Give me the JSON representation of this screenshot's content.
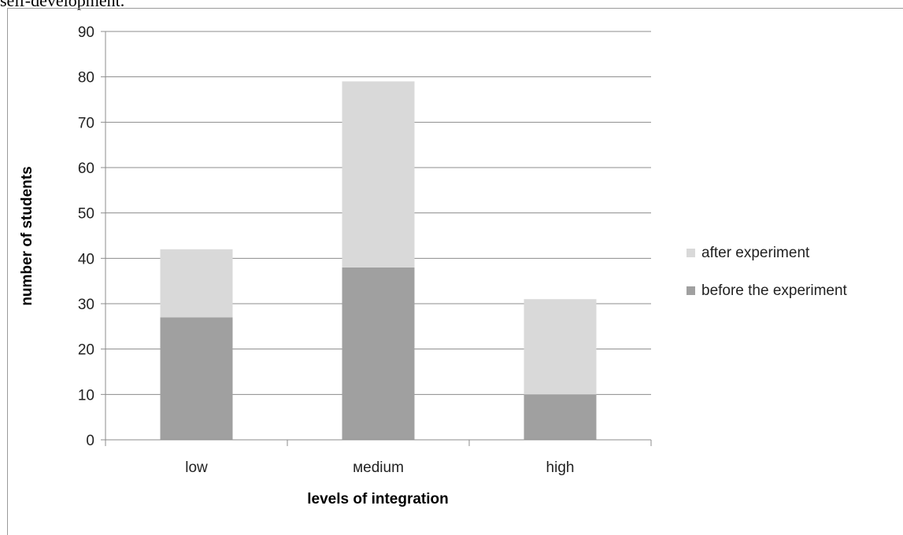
{
  "header": {
    "fragment": "self-development."
  },
  "chart_data": {
    "type": "bar",
    "stacked": true,
    "categories": [
      "low",
      "мedium",
      "high"
    ],
    "series": [
      {
        "name": "before the experiment",
        "values": [
          27,
          38,
          10
        ],
        "color": "#a0a0a0"
      },
      {
        "name": "after experiment",
        "values": [
          15,
          41,
          21
        ],
        "color": "#d9d9d9"
      }
    ],
    "title": "",
    "xlabel": "levels of integration",
    "ylabel": "number of students",
    "ylim": [
      0,
      90
    ],
    "yticks": [
      0,
      10,
      20,
      30,
      40,
      50,
      60,
      70,
      80,
      90
    ],
    "grid": true,
    "legend_position": "right",
    "legend_order": [
      "after experiment",
      "before the experiment"
    ]
  }
}
